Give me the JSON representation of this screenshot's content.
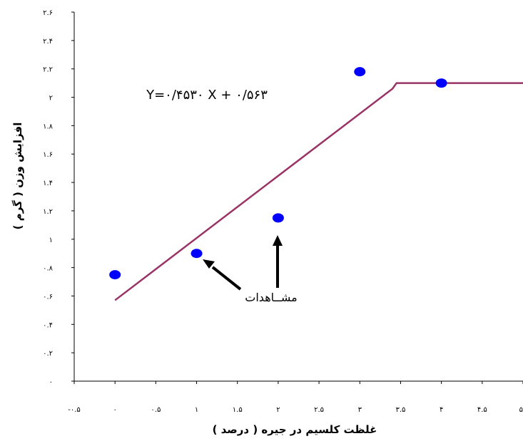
{
  "chart_data": {
    "type": "scatter",
    "x_ticks": [
      "-۰.۵",
      "۰",
      "۰.۵",
      "۱",
      "۱.۵",
      "۲",
      "۲.۵",
      "۳",
      "۳.۵",
      "۴",
      "۴.۵",
      "۵"
    ],
    "y_ticks": [
      "۰",
      "۰.۲",
      "۰.۴",
      "۰.۶",
      "۰.۸",
      "۱",
      "۱.۲",
      "۱.۴",
      "۱.۶",
      "۱.۸",
      "۲",
      "۲.۲",
      "۲.۴",
      "۲.۶"
    ],
    "xlim": [
      -0.5,
      5
    ],
    "ylim": [
      0,
      2.6
    ],
    "xlabel": "غلظت کلسیم در جیره ( درصد )",
    "ylabel": "افزایش وزن ( گرم )",
    "observations": {
      "x": [
        0,
        1,
        2,
        3,
        4
      ],
      "y": [
        0.75,
        0.9,
        1.15,
        2.18,
        2.1
      ]
    },
    "fit_line": {
      "x": [
        0,
        3.4,
        3.45,
        3.55,
        5
      ],
      "y": [
        0.57,
        2.06,
        2.1,
        2.1,
        2.1
      ]
    },
    "equation": "Y=۰/۴۵۳۰ X + ۰/۵۶۳",
    "annotation": "مشــاهدات",
    "colors": {
      "points": "#0000ff",
      "line": "#993366",
      "axis": "#000000"
    },
    "grid": false
  }
}
